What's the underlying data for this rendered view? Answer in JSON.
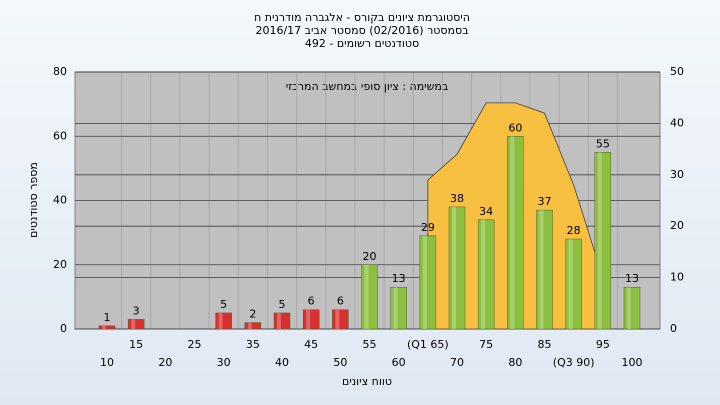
{
  "chart_data": {
    "type": "bar",
    "title": "היסטוגרמת ציונים בקורס - אלגברה מודרנית ח",
    "subtitle": "בסמסטר  (02/2016)  סמסטר אביב 2016/17",
    "subtitle2": "סטודנטים רשומים - 492",
    "annotation": "במשימה : ציון סופי במחשב המרכזי",
    "y_label": "מספר סטודנטים",
    "x_label": "טווח ציונים",
    "categories": [
      "10",
      "15",
      "20",
      "25",
      "30",
      "35",
      "40",
      "45",
      "50",
      "55",
      "60",
      "(Q1 65)",
      "70",
      "75",
      "80",
      "85",
      "(Q3 90)",
      "95",
      "100"
    ],
    "series": [
      {
        "type": "area",
        "axis": "y2",
        "color": "#f8c040",
        "values": [
          null,
          null,
          null,
          null,
          null,
          null,
          null,
          null,
          null,
          null,
          null,
          29,
          34,
          44,
          44,
          42,
          28,
          10,
          null
        ]
      },
      {
        "type": "bar",
        "axis": "y",
        "values": [
          1,
          3,
          null,
          null,
          5,
          2,
          5,
          6,
          6,
          20,
          13,
          29,
          38,
          34,
          60,
          37,
          28,
          55,
          13
        ],
        "colors": [
          "#d83030",
          "#d83030",
          "#d83030",
          "#d83030",
          "#d83030",
          "#d83030",
          "#d83030",
          "#d83030",
          "#d83030",
          "#8cbf40",
          "#8cbf40",
          "#8cbf40",
          "#8cbf40",
          "#8cbf40",
          "#8cbf40",
          "#8cbf40",
          "#8cbf40",
          "#8cbf40",
          "#8cbf40"
        ]
      }
    ],
    "ylim": [
      0,
      80
    ],
    "yticks": [
      0,
      20,
      40,
      60,
      80
    ],
    "y2lim": [
      0,
      50
    ],
    "y2ticks": [
      0,
      10,
      20,
      30,
      40,
      50
    ],
    "grid": true
  }
}
